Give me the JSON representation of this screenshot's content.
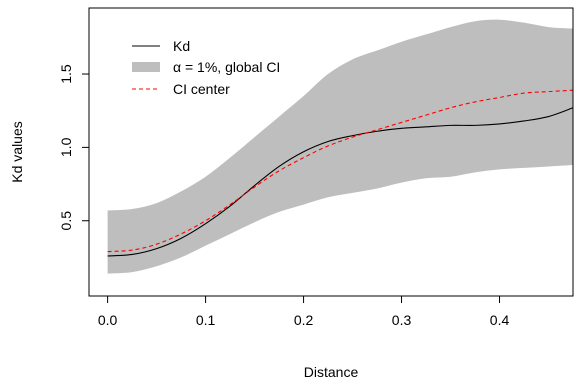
{
  "chart_data": {
    "type": "line",
    "xlabel": "Distance",
    "ylabel": "Kd values",
    "xlim": [
      -0.019,
      0.475
    ],
    "ylim": [
      -0.013,
      1.95
    ],
    "x_ticks": [
      0.0,
      0.1,
      0.2,
      0.3,
      0.4
    ],
    "x_tick_labels": [
      "0.0",
      "0.1",
      "0.2",
      "0.3",
      "0.4"
    ],
    "y_ticks": [
      0.5,
      1.0,
      1.5
    ],
    "y_tick_labels": [
      "0.5",
      "1.0",
      "1.5"
    ],
    "grid": false,
    "legend_position": "top-left",
    "legend": [
      {
        "label": "Kd",
        "style": "line",
        "color": "#000000"
      },
      {
        "label": "α = 1%, global CI",
        "style": "band",
        "color": "#bebebe"
      },
      {
        "label": "CI center",
        "style": "dashed",
        "color": "#ff0000"
      }
    ],
    "x": [
      0.0,
      0.025,
      0.05,
      0.075,
      0.1,
      0.125,
      0.15,
      0.175,
      0.2,
      0.225,
      0.25,
      0.275,
      0.3,
      0.325,
      0.35,
      0.375,
      0.4,
      0.425,
      0.45,
      0.475
    ],
    "series": [
      {
        "name": "Kd",
        "values": [
          0.26,
          0.27,
          0.31,
          0.38,
          0.48,
          0.6,
          0.74,
          0.87,
          0.97,
          1.04,
          1.08,
          1.11,
          1.13,
          1.14,
          1.15,
          1.15,
          1.16,
          1.18,
          1.21,
          1.27
        ],
        "color": "#000000",
        "dash": "none"
      },
      {
        "name": "CI center",
        "values": [
          0.29,
          0.3,
          0.34,
          0.41,
          0.5,
          0.61,
          0.73,
          0.84,
          0.93,
          1.01,
          1.07,
          1.12,
          1.17,
          1.22,
          1.27,
          1.31,
          1.34,
          1.37,
          1.38,
          1.39
        ],
        "color": "#ff0000",
        "dash": "4,3"
      }
    ],
    "band": {
      "name": "α = 1%, global CI",
      "color": "#bebebe",
      "upper": [
        0.57,
        0.58,
        0.62,
        0.7,
        0.8,
        0.93,
        1.07,
        1.21,
        1.35,
        1.5,
        1.6,
        1.66,
        1.72,
        1.77,
        1.82,
        1.86,
        1.87,
        1.85,
        1.82,
        1.81
      ],
      "lower": [
        0.14,
        0.15,
        0.19,
        0.25,
        0.33,
        0.41,
        0.49,
        0.56,
        0.61,
        0.66,
        0.69,
        0.72,
        0.76,
        0.79,
        0.8,
        0.83,
        0.85,
        0.86,
        0.87,
        0.88
      ]
    }
  }
}
